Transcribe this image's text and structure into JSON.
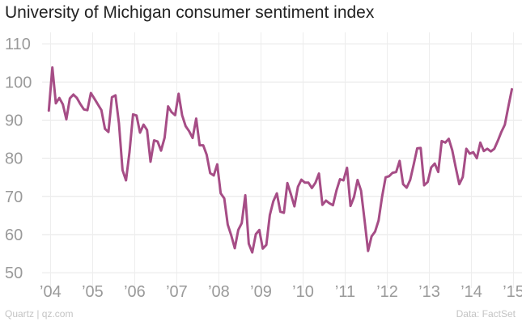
{
  "chart_data": {
    "type": "line",
    "title": "University of Michigan consumer sentiment index",
    "xlabel": "",
    "ylabel": "",
    "ylim": [
      46,
      113
    ],
    "xlim": [
      2003.8,
      2015.2
    ],
    "grid": true,
    "line_color": "#a64d86",
    "y_ticks": [
      50,
      60,
      70,
      80,
      90,
      100,
      110
    ],
    "x_ticks": [
      {
        "value": 2004,
        "label": "’04"
      },
      {
        "value": 2005,
        "label": "’05"
      },
      {
        "value": 2006,
        "label": "’06"
      },
      {
        "value": 2007,
        "label": "’07"
      },
      {
        "value": 2008,
        "label": "’08"
      },
      {
        "value": 2009,
        "label": "’09"
      },
      {
        "value": 2010,
        "label": "’10"
      },
      {
        "value": 2011,
        "label": "’11"
      },
      {
        "value": 2012,
        "label": "’12"
      },
      {
        "value": 2013,
        "label": "’13"
      },
      {
        "value": 2014,
        "label": "’14"
      },
      {
        "value": 2015,
        "label": "’15"
      }
    ],
    "series": [
      {
        "name": "Consumer sentiment index",
        "x_start": 2003.96,
        "x_step": 0.0833333,
        "values": [
          92.5,
          103.8,
          94.4,
          95.8,
          94.1,
          90.2,
          95.7,
          96.7,
          95.8,
          94.2,
          92.8,
          92.6,
          97.1,
          95.6,
          94.1,
          92.6,
          87.7,
          86.9,
          96.0,
          96.5,
          89.1,
          76.9,
          74.2,
          81.6,
          91.5,
          91.2,
          86.7,
          88.8,
          87.4,
          79.1,
          84.7,
          84.4,
          82.0,
          85.4,
          93.6,
          92.1,
          91.3,
          96.9,
          91.3,
          88.4,
          87.1,
          85.3,
          90.4,
          83.4,
          83.4,
          80.9,
          76.1,
          75.5,
          78.4,
          70.8,
          69.5,
          62.6,
          59.8,
          56.4,
          61.2,
          63.0,
          70.3,
          57.6,
          55.3,
          60.1,
          61.2,
          56.3,
          57.3,
          65.1,
          68.7,
          70.8,
          66.0,
          65.7,
          73.5,
          70.6,
          67.4,
          72.5,
          74.4,
          73.6,
          73.6,
          72.2,
          73.6,
          76.0,
          67.8,
          68.9,
          68.2,
          67.7,
          71.6,
          74.5,
          74.2,
          77.5,
          67.5,
          69.8,
          74.3,
          71.5,
          63.7,
          55.7,
          59.5,
          60.8,
          63.7,
          69.9,
          75.0,
          75.3,
          76.2,
          76.4,
          79.3,
          73.2,
          72.3,
          74.3,
          78.3,
          82.6,
          82.7,
          72.9,
          73.8,
          77.6,
          78.6,
          76.4,
          84.5,
          84.1,
          85.1,
          82.1,
          77.5,
          73.2,
          75.1,
          82.5,
          81.2,
          81.6,
          80.0,
          84.1,
          81.9,
          82.5,
          81.8,
          82.5,
          84.6,
          86.9,
          88.8,
          93.6,
          98.1
        ]
      }
    ]
  },
  "footer": {
    "source_left": "Quartz | qz.com",
    "source_right": "Data: FactSet"
  }
}
